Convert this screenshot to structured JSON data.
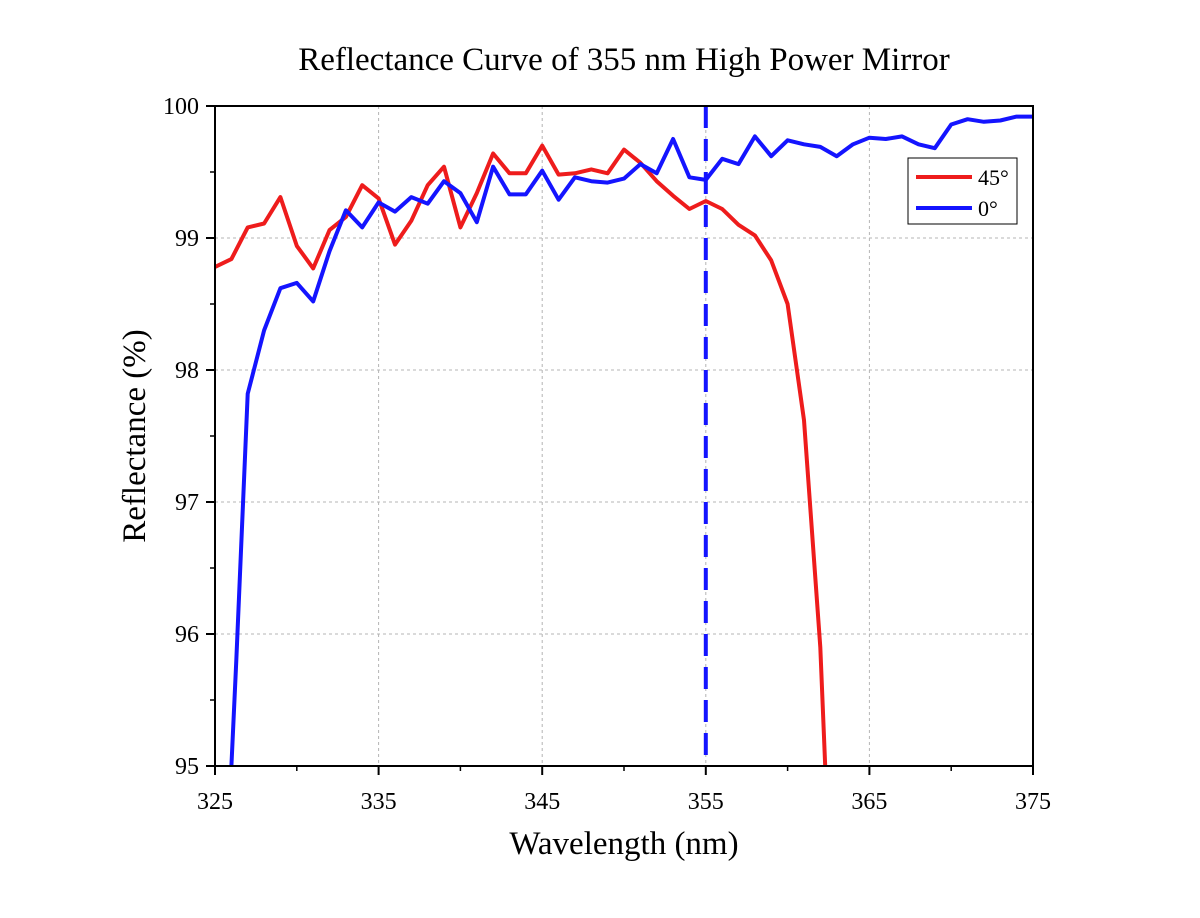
{
  "chart_data": {
    "type": "line",
    "title": "Reflectance Curve of 355 nm High Power Mirror",
    "xlabel": "Wavelength (nm)",
    "ylabel": "Reflectance (%)",
    "xlim": [
      325,
      375
    ],
    "ylim": [
      95,
      100
    ],
    "xticks": [
      325,
      335,
      345,
      355,
      365,
      375
    ],
    "yticks": [
      95,
      96,
      97,
      98,
      99,
      100
    ],
    "grid": true,
    "legend_position": "top-right",
    "reference_line": {
      "x": 355,
      "style": "dashed",
      "color": "#1414ff"
    },
    "series": [
      {
        "name": "45°",
        "color": "#ee1c1c",
        "x": [
          325,
          326,
          327,
          328,
          329,
          330,
          331,
          332,
          333,
          334,
          335,
          336,
          337,
          338,
          339,
          340,
          341,
          342,
          343,
          344,
          345,
          346,
          347,
          348,
          349,
          350,
          351,
          352,
          353,
          354,
          355,
          356,
          357,
          358,
          359,
          360,
          361,
          362,
          362.3
        ],
        "y": [
          98.78,
          98.84,
          99.08,
          99.11,
          99.31,
          98.94,
          98.77,
          99.06,
          99.16,
          99.4,
          99.3,
          98.95,
          99.13,
          99.4,
          99.54,
          99.08,
          99.34,
          99.64,
          99.49,
          99.49,
          99.7,
          99.48,
          99.49,
          99.52,
          99.49,
          99.67,
          99.57,
          99.43,
          99.32,
          99.22,
          99.28,
          99.22,
          99.1,
          99.02,
          98.83,
          98.5,
          97.62,
          95.9,
          95.0
        ]
      },
      {
        "name": "0°",
        "color": "#1414ff",
        "x": [
          326,
          326.3,
          327,
          328,
          329,
          330,
          331,
          332,
          333,
          334,
          335,
          336,
          337,
          338,
          339,
          340,
          341,
          342,
          343,
          344,
          345,
          346,
          347,
          348,
          349,
          350,
          351,
          352,
          353,
          354,
          355,
          356,
          357,
          358,
          359,
          360,
          361,
          362,
          363,
          364,
          365,
          366,
          367,
          368,
          369,
          370,
          371,
          372,
          373,
          374,
          375
        ],
        "y": [
          95.0,
          95.8,
          97.82,
          98.3,
          98.62,
          98.66,
          98.52,
          98.9,
          99.21,
          99.08,
          99.27,
          99.2,
          99.31,
          99.26,
          99.43,
          99.34,
          99.12,
          99.54,
          99.33,
          99.33,
          99.51,
          99.29,
          99.46,
          99.43,
          99.42,
          99.45,
          99.56,
          99.49,
          99.75,
          99.46,
          99.44,
          99.6,
          99.56,
          99.77,
          99.62,
          99.74,
          99.71,
          99.69,
          99.62,
          99.71,
          99.76,
          99.75,
          99.77,
          99.71,
          99.68,
          99.86,
          99.9,
          99.88,
          99.89,
          99.92,
          99.92
        ]
      }
    ]
  }
}
